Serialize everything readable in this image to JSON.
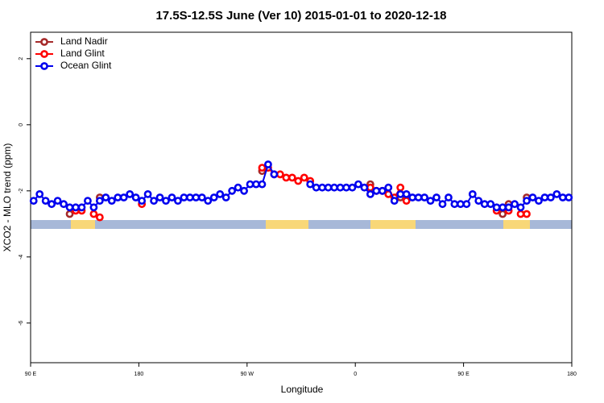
{
  "chart_data": {
    "type": "line",
    "title": "17.5S-12.5S June (Ver 10)   2015-01-01 to 2020-12-18",
    "x_label": "Longitude",
    "y_label": "XCO2 - MLO trend (ppm)",
    "xlim": [
      90,
      540
    ],
    "ylim": [
      -7.2,
      2.8
    ],
    "xticks": [
      {
        "value": 90,
        "label": "90 E"
      },
      180,
      {
        "value": 270,
        "label": "90 W"
      },
      {
        "value": 360,
        "label": "0"
      },
      {
        "value": 450,
        "label": "90 E"
      },
      {
        "value": 540,
        "label": "180"
      }
    ],
    "yticks": [
      2,
      0,
      -2,
      -4,
      -6
    ],
    "legend": "top-left",
    "x": [
      92.5,
      97.5,
      102.5,
      107.5,
      112.5,
      117.5,
      122.5,
      127.5,
      132.5,
      137.5,
      142.5,
      147.5,
      152.5,
      157.5,
      162.5,
      167.5,
      172.5,
      177.5,
      182.5,
      187.5,
      192.5,
      197.5,
      202.5,
      207.5,
      212.5,
      217.5,
      222.5,
      227.5,
      232.5,
      237.5,
      242.5,
      247.5,
      252.5,
      257.5,
      262.5,
      267.5,
      272.5,
      277.5,
      282.5,
      287.5,
      292.5,
      297.5,
      302.5,
      307.5,
      312.5,
      317.5,
      322.5,
      327.5,
      332.5,
      337.5,
      342.5,
      347.5,
      352.5,
      357.5,
      362.5,
      367.5,
      372.5,
      377.5,
      382.5,
      387.5,
      392.5,
      397.5,
      402.5,
      407.5,
      412.5,
      417.5,
      422.5,
      427.5,
      432.5,
      437.5,
      442.5,
      447.5,
      452.5,
      457.5,
      462.5,
      467.5,
      472.5,
      477.5,
      482.5,
      487.5,
      492.5,
      497.5,
      502.5,
      507.5,
      512.5,
      517.5,
      522.5,
      527.5,
      532.5,
      537.5
    ],
    "series": [
      {
        "name": "Land Nadir",
        "color": "#a52a2a",
        "values": [
          null,
          null,
          null,
          null,
          null,
          null,
          -2.7,
          null,
          null,
          null,
          null,
          -2.2,
          null,
          null,
          null,
          null,
          null,
          null,
          null,
          null,
          null,
          null,
          null,
          null,
          null,
          null,
          null,
          null,
          null,
          null,
          null,
          null,
          null,
          null,
          null,
          null,
          null,
          null,
          -1.4,
          null,
          null,
          null,
          null,
          null,
          null,
          null,
          null,
          null,
          null,
          null,
          null,
          null,
          null,
          null,
          null,
          null,
          -1.8,
          null,
          null,
          null,
          null,
          -2.2,
          null,
          null,
          null,
          null,
          null,
          null,
          null,
          null,
          null,
          null,
          null,
          null,
          null,
          null,
          null,
          null,
          -2.7,
          -2.4,
          null,
          null,
          -2.2,
          null,
          null,
          null,
          null,
          null,
          null,
          null
        ]
      },
      {
        "name": "Land Glint",
        "color": "#ff0000",
        "values": [
          null,
          null,
          null,
          null,
          null,
          null,
          null,
          -2.6,
          -2.6,
          null,
          -2.7,
          -2.8,
          null,
          null,
          null,
          null,
          null,
          null,
          -2.4,
          null,
          null,
          null,
          null,
          null,
          null,
          null,
          null,
          null,
          null,
          null,
          null,
          null,
          null,
          null,
          null,
          null,
          null,
          null,
          -1.3,
          -1.3,
          -1.5,
          -1.5,
          -1.6,
          -1.6,
          -1.7,
          -1.6,
          -1.7,
          null,
          null,
          null,
          null,
          null,
          null,
          null,
          null,
          null,
          -1.9,
          -2.0,
          -2.0,
          -2.1,
          -2.2,
          -1.9,
          -2.3,
          null,
          null,
          null,
          null,
          null,
          null,
          null,
          null,
          null,
          null,
          null,
          null,
          null,
          null,
          -2.6,
          null,
          -2.6,
          null,
          -2.7,
          -2.7,
          null,
          null,
          null,
          null,
          null,
          null,
          null
        ]
      },
      {
        "name": "Ocean Glint",
        "color": "#0000ee",
        "values": [
          -2.3,
          -2.1,
          -2.3,
          -2.4,
          -2.3,
          -2.4,
          -2.5,
          -2.5,
          -2.5,
          -2.3,
          -2.5,
          -2.3,
          -2.2,
          -2.3,
          -2.2,
          -2.2,
          -2.1,
          -2.2,
          -2.3,
          -2.1,
          -2.3,
          -2.2,
          -2.3,
          -2.2,
          -2.3,
          -2.2,
          -2.2,
          -2.2,
          -2.2,
          -2.3,
          -2.2,
          -2.1,
          -2.2,
          -2.0,
          -1.9,
          -2.0,
          -1.8,
          -1.8,
          -1.8,
          -1.2,
          -1.5,
          null,
          null,
          null,
          null,
          null,
          -1.8,
          -1.9,
          -1.9,
          -1.9,
          -1.9,
          -1.9,
          -1.9,
          -1.9,
          -1.8,
          -1.9,
          -2.1,
          -2.0,
          -2.0,
          -1.9,
          -2.3,
          -2.1,
          -2.1,
          -2.2,
          -2.2,
          -2.2,
          -2.3,
          -2.2,
          -2.4,
          -2.2,
          -2.4,
          -2.4,
          -2.4,
          -2.1,
          -2.3,
          -2.4,
          -2.4,
          -2.5,
          -2.5,
          -2.5,
          -2.4,
          -2.5,
          -2.3,
          -2.2,
          -2.3,
          -2.2,
          -2.2,
          -2.1,
          -2.2,
          -2.2
        ]
      }
    ]
  }
}
